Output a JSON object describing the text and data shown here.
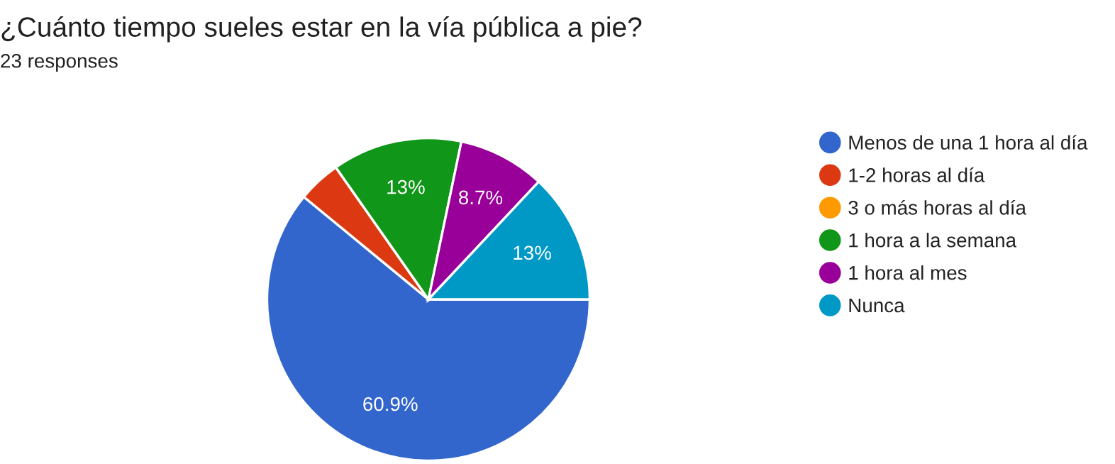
{
  "chart_data": {
    "type": "pie",
    "title": "¿Cuánto tiempo sueles estar en la vía pública a pie?",
    "subtitle": "23 responses",
    "categories": [
      "Menos de una 1 hora al día",
      "1-2 horas al día",
      "3 o más horas al día",
      "1 hora a la semana",
      "1 hora al mes",
      "Nunca"
    ],
    "values": [
      60.9,
      4.3,
      0,
      13,
      8.7,
      13
    ],
    "colors": [
      "#3366cc",
      "#dc3912",
      "#ff9900",
      "#109618",
      "#990099",
      "#0099c6"
    ],
    "value_labels": [
      "60.9%",
      null,
      null,
      "13%",
      "8.7%",
      "13%"
    ],
    "legend": "right"
  }
}
